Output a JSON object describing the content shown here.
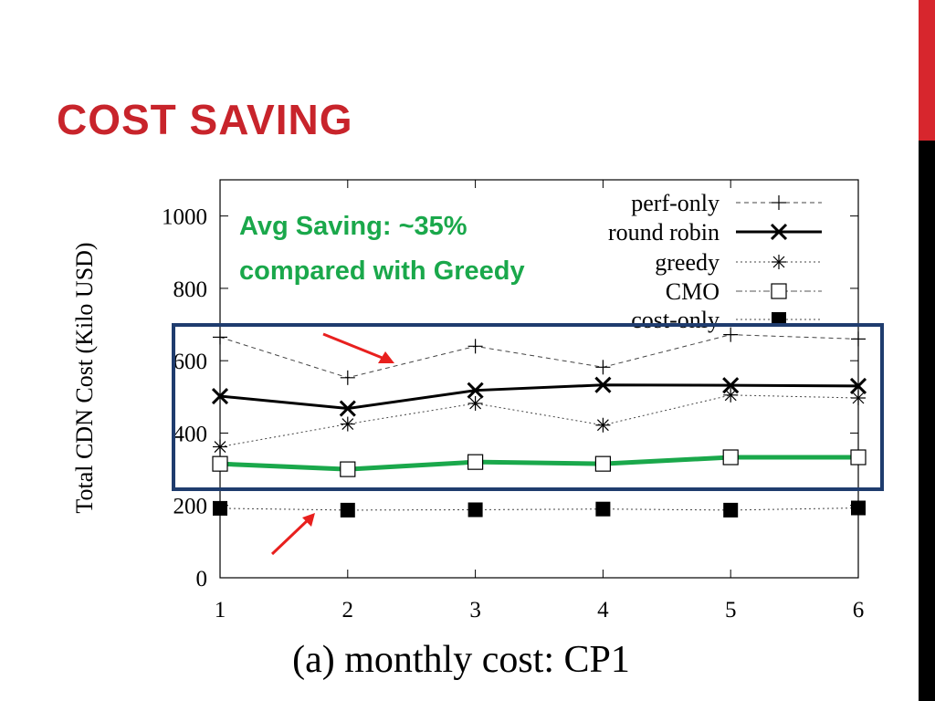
{
  "slide": {
    "title": "COST SAVING"
  },
  "annotation": {
    "line1": "Avg Saving: ~35%",
    "line2": "compared with Greedy"
  },
  "colors": {
    "title": "#c8242b",
    "accent_green": "#1aa84b",
    "highlight_box": "#1f3c6e",
    "arrow": "#e8201e",
    "side_bar_top": "#d7262d",
    "side_bar_bottom": "#000000"
  },
  "chart_data": {
    "type": "line",
    "ylabel": "Total CDN Cost (Kilo USD)",
    "xlabel": "",
    "caption": "(a) monthly cost: CP1",
    "x": [
      1,
      2,
      3,
      4,
      5,
      6
    ],
    "xticks": [
      "1",
      "2",
      "3",
      "4",
      "5",
      "6"
    ],
    "yticks": [
      "0",
      "200",
      "400",
      "600",
      "800",
      "1000"
    ],
    "xlim": [
      1,
      6
    ],
    "ylim": [
      0,
      1100
    ],
    "grid": false,
    "legend_position": "top-right",
    "series": [
      {
        "name": "perf-only",
        "values": [
          665,
          553,
          640,
          582,
          672,
          660
        ],
        "line": "dashed-thin",
        "marker": "plus"
      },
      {
        "name": "round robin",
        "values": [
          502,
          468,
          518,
          533,
          532,
          530
        ],
        "line": "solid-thick",
        "marker": "cross"
      },
      {
        "name": "greedy",
        "values": [
          362,
          425,
          482,
          422,
          505,
          497
        ],
        "line": "dotted",
        "marker": "asterisk"
      },
      {
        "name": "CMO",
        "values": [
          315,
          300,
          320,
          315,
          333,
          333
        ],
        "line": "dash-dot",
        "marker": "open-square",
        "highlight_color": "#1aa84b"
      },
      {
        "name": "cost-only",
        "values": [
          192,
          187,
          188,
          190,
          187,
          193
        ],
        "line": "dotted",
        "marker": "filled-square"
      }
    ]
  }
}
